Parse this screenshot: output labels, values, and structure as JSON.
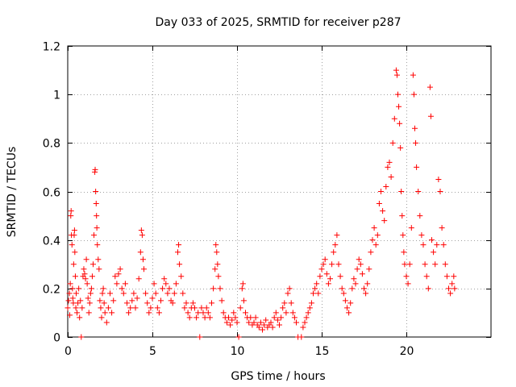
{
  "chart_data": {
    "type": "scatter",
    "title": "Day 033 of 2025, SRMTID for receiver p287",
    "xlabel": "GPS time / hours",
    "ylabel": "SRMTID / TECUs",
    "xlim": [
      0,
      25
    ],
    "ylim": [
      0,
      1.2
    ],
    "xticks": [
      0,
      5,
      10,
      15,
      20
    ],
    "xtick_labels": [
      "0",
      "5",
      "10",
      "15",
      "20"
    ],
    "yticks": [
      0,
      0.2,
      0.4,
      0.6,
      0.8,
      1.0,
      1.2
    ],
    "ytick_labels": [
      "0",
      "0.2",
      "0.4",
      "0.6",
      "0.8",
      "1",
      "1.2"
    ],
    "grid": true,
    "marker": "plus",
    "series": [
      {
        "name": "SRMTID",
        "color": "#ff0000",
        "points": [
          [
            0.0,
            0.12
          ],
          [
            0.05,
            0.15
          ],
          [
            0.1,
            0.18
          ],
          [
            0.12,
            0.09
          ],
          [
            0.15,
            0.22
          ],
          [
            0.18,
            0.5
          ],
          [
            0.2,
            0.52
          ],
          [
            0.22,
            0.42
          ],
          [
            0.25,
            0.38
          ],
          [
            0.28,
            0.2
          ],
          [
            0.3,
            0.16
          ],
          [
            0.33,
            0.14
          ],
          [
            0.35,
            0.3
          ],
          [
            0.38,
            0.42
          ],
          [
            0.4,
            0.44
          ],
          [
            0.42,
            0.35
          ],
          [
            0.45,
            0.25
          ],
          [
            0.48,
            0.12
          ],
          [
            0.5,
            0.18
          ],
          [
            0.55,
            0.1
          ],
          [
            0.6,
            0.14
          ],
          [
            0.65,
            0.2
          ],
          [
            0.7,
            0.08
          ],
          [
            0.75,
            0.15
          ],
          [
            0.8,
            0.0
          ],
          [
            0.85,
            0.12
          ],
          [
            0.9,
            0.25
          ],
          [
            0.95,
            0.28
          ],
          [
            1.0,
            0.26
          ],
          [
            1.05,
            0.24
          ],
          [
            1.1,
            0.32
          ],
          [
            1.15,
            0.22
          ],
          [
            1.2,
            0.16
          ],
          [
            1.25,
            0.1
          ],
          [
            1.3,
            0.14
          ],
          [
            1.35,
            0.18
          ],
          [
            1.4,
            0.2
          ],
          [
            1.45,
            0.25
          ],
          [
            1.5,
            0.3
          ],
          [
            1.55,
            0.42
          ],
          [
            1.6,
            0.68
          ],
          [
            1.62,
            0.69
          ],
          [
            1.65,
            0.6
          ],
          [
            1.68,
            0.55
          ],
          [
            1.7,
            0.5
          ],
          [
            1.72,
            0.45
          ],
          [
            1.75,
            0.38
          ],
          [
            1.8,
            0.32
          ],
          [
            1.85,
            0.28
          ],
          [
            1.9,
            0.15
          ],
          [
            1.95,
            0.12
          ],
          [
            2.0,
            0.08
          ],
          [
            2.05,
            0.18
          ],
          [
            2.1,
            0.2
          ],
          [
            2.15,
            0.14
          ],
          [
            2.2,
            0.1
          ],
          [
            2.3,
            0.06
          ],
          [
            2.4,
            0.12
          ],
          [
            2.5,
            0.18
          ],
          [
            2.6,
            0.1
          ],
          [
            2.7,
            0.15
          ],
          [
            2.8,
            0.25
          ],
          [
            2.9,
            0.22
          ],
          [
            3.0,
            0.26
          ],
          [
            3.1,
            0.28
          ],
          [
            3.2,
            0.2
          ],
          [
            3.3,
            0.18
          ],
          [
            3.4,
            0.22
          ],
          [
            3.5,
            0.14
          ],
          [
            3.6,
            0.1
          ],
          [
            3.7,
            0.12
          ],
          [
            3.8,
            0.15
          ],
          [
            3.9,
            0.18
          ],
          [
            4.0,
            0.12
          ],
          [
            4.1,
            0.16
          ],
          [
            4.2,
            0.24
          ],
          [
            4.3,
            0.35
          ],
          [
            4.35,
            0.44
          ],
          [
            4.4,
            0.42
          ],
          [
            4.45,
            0.32
          ],
          [
            4.5,
            0.28
          ],
          [
            4.6,
            0.18
          ],
          [
            4.7,
            0.14
          ],
          [
            4.8,
            0.1
          ],
          [
            4.9,
            0.12
          ],
          [
            5.0,
            0.16
          ],
          [
            5.1,
            0.22
          ],
          [
            5.2,
            0.18
          ],
          [
            5.3,
            0.12
          ],
          [
            5.4,
            0.1
          ],
          [
            5.5,
            0.15
          ],
          [
            5.6,
            0.2
          ],
          [
            5.7,
            0.24
          ],
          [
            5.8,
            0.22
          ],
          [
            5.9,
            0.18
          ],
          [
            6.0,
            0.2
          ],
          [
            6.1,
            0.15
          ],
          [
            6.2,
            0.14
          ],
          [
            6.3,
            0.18
          ],
          [
            6.4,
            0.22
          ],
          [
            6.5,
            0.35
          ],
          [
            6.55,
            0.38
          ],
          [
            6.6,
            0.3
          ],
          [
            6.7,
            0.25
          ],
          [
            6.8,
            0.18
          ],
          [
            6.9,
            0.12
          ],
          [
            7.0,
            0.14
          ],
          [
            7.1,
            0.1
          ],
          [
            7.2,
            0.08
          ],
          [
            7.3,
            0.12
          ],
          [
            7.4,
            0.14
          ],
          [
            7.5,
            0.12
          ],
          [
            7.6,
            0.08
          ],
          [
            7.7,
            0.1
          ],
          [
            7.8,
            0.0
          ],
          [
            7.9,
            0.12
          ],
          [
            8.0,
            0.1
          ],
          [
            8.1,
            0.08
          ],
          [
            8.2,
            0.12
          ],
          [
            8.3,
            0.1
          ],
          [
            8.4,
            0.08
          ],
          [
            8.5,
            0.14
          ],
          [
            8.6,
            0.2
          ],
          [
            8.7,
            0.28
          ],
          [
            8.75,
            0.38
          ],
          [
            8.8,
            0.35
          ],
          [
            8.85,
            0.3
          ],
          [
            8.9,
            0.25
          ],
          [
            9.0,
            0.2
          ],
          [
            9.1,
            0.15
          ],
          [
            9.2,
            0.1
          ],
          [
            9.3,
            0.08
          ],
          [
            9.4,
            0.06
          ],
          [
            9.5,
            0.08
          ],
          [
            9.6,
            0.05
          ],
          [
            9.7,
            0.07
          ],
          [
            9.8,
            0.1
          ],
          [
            9.9,
            0.08
          ],
          [
            10.0,
            0.06
          ],
          [
            10.1,
            0.0
          ],
          [
            10.2,
            0.12
          ],
          [
            10.3,
            0.2
          ],
          [
            10.35,
            0.22
          ],
          [
            10.4,
            0.15
          ],
          [
            10.5,
            0.1
          ],
          [
            10.6,
            0.08
          ],
          [
            10.7,
            0.06
          ],
          [
            10.8,
            0.08
          ],
          [
            10.9,
            0.05
          ],
          [
            11.0,
            0.06
          ],
          [
            11.1,
            0.08
          ],
          [
            11.2,
            0.05
          ],
          [
            11.3,
            0.04
          ],
          [
            11.4,
            0.06
          ],
          [
            11.5,
            0.03
          ],
          [
            11.6,
            0.05
          ],
          [
            11.7,
            0.07
          ],
          [
            11.8,
            0.04
          ],
          [
            11.9,
            0.05
          ],
          [
            12.0,
            0.06
          ],
          [
            12.1,
            0.04
          ],
          [
            12.2,
            0.08
          ],
          [
            12.3,
            0.1
          ],
          [
            12.4,
            0.07
          ],
          [
            12.5,
            0.05
          ],
          [
            12.6,
            0.08
          ],
          [
            12.7,
            0.12
          ],
          [
            12.8,
            0.14
          ],
          [
            12.9,
            0.1
          ],
          [
            13.0,
            0.18
          ],
          [
            13.1,
            0.2
          ],
          [
            13.2,
            0.14
          ],
          [
            13.3,
            0.1
          ],
          [
            13.4,
            0.08
          ],
          [
            13.5,
            0.06
          ],
          [
            13.6,
            0.0
          ],
          [
            13.8,
            0.0
          ],
          [
            13.9,
            0.04
          ],
          [
            14.0,
            0.06
          ],
          [
            14.1,
            0.08
          ],
          [
            14.2,
            0.1
          ],
          [
            14.3,
            0.12
          ],
          [
            14.4,
            0.14
          ],
          [
            14.5,
            0.18
          ],
          [
            14.6,
            0.2
          ],
          [
            14.7,
            0.22
          ],
          [
            14.8,
            0.18
          ],
          [
            14.9,
            0.25
          ],
          [
            15.0,
            0.28
          ],
          [
            15.1,
            0.3
          ],
          [
            15.2,
            0.32
          ],
          [
            15.3,
            0.26
          ],
          [
            15.4,
            0.22
          ],
          [
            15.5,
            0.24
          ],
          [
            15.6,
            0.3
          ],
          [
            15.7,
            0.35
          ],
          [
            15.8,
            0.38
          ],
          [
            15.9,
            0.42
          ],
          [
            16.0,
            0.3
          ],
          [
            16.1,
            0.25
          ],
          [
            16.2,
            0.2
          ],
          [
            16.3,
            0.18
          ],
          [
            16.4,
            0.15
          ],
          [
            16.5,
            0.12
          ],
          [
            16.6,
            0.1
          ],
          [
            16.7,
            0.14
          ],
          [
            16.8,
            0.2
          ],
          [
            16.9,
            0.24
          ],
          [
            17.0,
            0.22
          ],
          [
            17.1,
            0.28
          ],
          [
            17.2,
            0.32
          ],
          [
            17.3,
            0.3
          ],
          [
            17.4,
            0.26
          ],
          [
            17.5,
            0.2
          ],
          [
            17.6,
            0.18
          ],
          [
            17.7,
            0.22
          ],
          [
            17.8,
            0.28
          ],
          [
            17.9,
            0.35
          ],
          [
            18.0,
            0.4
          ],
          [
            18.1,
            0.45
          ],
          [
            18.2,
            0.38
          ],
          [
            18.3,
            0.42
          ],
          [
            18.4,
            0.55
          ],
          [
            18.5,
            0.6
          ],
          [
            18.6,
            0.52
          ],
          [
            18.7,
            0.48
          ],
          [
            18.8,
            0.62
          ],
          [
            18.9,
            0.7
          ],
          [
            19.0,
            0.72
          ],
          [
            19.1,
            0.66
          ],
          [
            19.2,
            0.8
          ],
          [
            19.3,
            0.9
          ],
          [
            19.4,
            1.1
          ],
          [
            19.45,
            1.08
          ],
          [
            19.5,
            1.0
          ],
          [
            19.55,
            0.95
          ],
          [
            19.6,
            0.88
          ],
          [
            19.65,
            0.78
          ],
          [
            19.7,
            0.6
          ],
          [
            19.75,
            0.5
          ],
          [
            19.8,
            0.42
          ],
          [
            19.85,
            0.35
          ],
          [
            19.9,
            0.3
          ],
          [
            20.0,
            0.25
          ],
          [
            20.1,
            0.22
          ],
          [
            20.2,
            0.3
          ],
          [
            20.3,
            0.45
          ],
          [
            20.4,
            1.08
          ],
          [
            20.45,
            1.0
          ],
          [
            20.5,
            0.86
          ],
          [
            20.55,
            0.8
          ],
          [
            20.6,
            0.7
          ],
          [
            20.7,
            0.6
          ],
          [
            20.8,
            0.5
          ],
          [
            20.9,
            0.42
          ],
          [
            21.0,
            0.38
          ],
          [
            21.1,
            0.3
          ],
          [
            21.2,
            0.25
          ],
          [
            21.3,
            0.2
          ],
          [
            21.4,
            1.03
          ],
          [
            21.45,
            0.91
          ],
          [
            21.5,
            0.4
          ],
          [
            21.6,
            0.35
          ],
          [
            21.7,
            0.3
          ],
          [
            21.8,
            0.38
          ],
          [
            21.9,
            0.65
          ],
          [
            22.0,
            0.6
          ],
          [
            22.1,
            0.45
          ],
          [
            22.2,
            0.38
          ],
          [
            22.3,
            0.3
          ],
          [
            22.4,
            0.25
          ],
          [
            22.5,
            0.2
          ],
          [
            22.6,
            0.18
          ],
          [
            22.7,
            0.22
          ],
          [
            22.8,
            0.25
          ],
          [
            22.85,
            0.2
          ]
        ]
      }
    ]
  }
}
